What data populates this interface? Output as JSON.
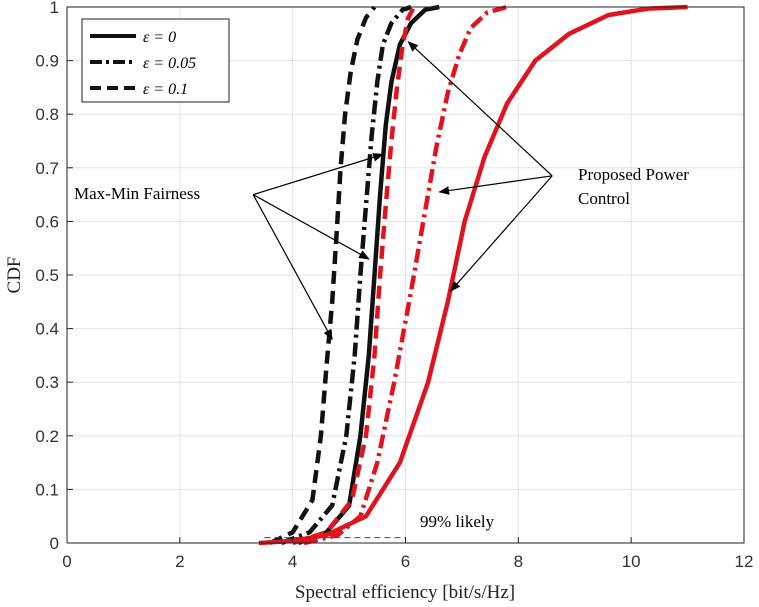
{
  "chart_data": {
    "type": "line",
    "title": "",
    "xlabel": "Spectral efficiency [bit/s/Hz]",
    "ylabel": "CDF",
    "xlim": [
      0,
      12
    ],
    "ylim": [
      0,
      1
    ],
    "xticks": [
      "0",
      "2",
      "4",
      "6",
      "8",
      "10",
      "12"
    ],
    "yticks": [
      "0",
      "0.1",
      "0.2",
      "0.3",
      "0.4",
      "0.5",
      "0.6",
      "0.7",
      "0.8",
      "0.9",
      "1"
    ],
    "grid": true,
    "legend_position": "top-left",
    "legend": [
      {
        "label": "ε = 0",
        "style": "solid"
      },
      {
        "label": "ε = 0.05",
        "style": "dashdot"
      },
      {
        "label": "ε = 0.1",
        "style": "dashed"
      }
    ],
    "series": [
      {
        "name": "Max-Min Fairness, ε = 0",
        "group": "max-min",
        "color": "#111111",
        "style": "solid",
        "x": [
          4.1,
          4.6,
          5.0,
          5.2,
          5.35,
          5.45,
          5.55,
          5.65,
          5.75,
          5.9,
          6.1,
          6.35,
          6.6
        ],
        "y": [
          0.0,
          0.02,
          0.07,
          0.2,
          0.35,
          0.5,
          0.65,
          0.78,
          0.86,
          0.93,
          0.97,
          0.995,
          1.0
        ]
      },
      {
        "name": "Max-Min Fairness, ε = 0.05",
        "group": "max-min",
        "color": "#111111",
        "style": "dashdot",
        "x": [
          3.8,
          4.3,
          4.7,
          4.95,
          5.1,
          5.2,
          5.3,
          5.4,
          5.5,
          5.6,
          5.75,
          5.95,
          6.1
        ],
        "y": [
          0.0,
          0.02,
          0.07,
          0.2,
          0.35,
          0.5,
          0.63,
          0.76,
          0.86,
          0.93,
          0.97,
          0.995,
          1.0
        ]
      },
      {
        "name": "Max-Min Fairness, ε = 0.1",
        "group": "max-min",
        "color": "#111111",
        "style": "dashed",
        "x": [
          3.6,
          4.0,
          4.35,
          4.5,
          4.6,
          4.7,
          4.78,
          4.85,
          4.93,
          5.03,
          5.15,
          5.3,
          5.45
        ],
        "y": [
          0.0,
          0.02,
          0.08,
          0.2,
          0.33,
          0.45,
          0.58,
          0.7,
          0.8,
          0.88,
          0.94,
          0.98,
          1.0
        ]
      },
      {
        "name": "Proposed Power Control, ε = 0",
        "group": "proposed",
        "color": "#e0141e",
        "style": "solid",
        "x": [
          3.4,
          4.0,
          4.6,
          5.3,
          5.9,
          6.4,
          6.75,
          7.05,
          7.4,
          7.8,
          8.3,
          8.9,
          9.6,
          10.3,
          11.0
        ],
        "y": [
          0.0,
          0.004,
          0.015,
          0.05,
          0.15,
          0.3,
          0.45,
          0.6,
          0.72,
          0.82,
          0.9,
          0.95,
          0.985,
          0.997,
          1.0
        ]
      },
      {
        "name": "Proposed Power Control, ε = 0.05",
        "group": "proposed",
        "color": "#e0141e",
        "style": "dashdot",
        "x": [
          4.2,
          4.8,
          5.2,
          5.5,
          5.8,
          6.1,
          6.35,
          6.55,
          6.75,
          6.95,
          7.15,
          7.45,
          7.8
        ],
        "y": [
          0.0,
          0.015,
          0.05,
          0.15,
          0.3,
          0.47,
          0.62,
          0.74,
          0.84,
          0.91,
          0.96,
          0.99,
          1.0
        ]
      },
      {
        "name": "Proposed Power Control, ε = 0.1",
        "group": "proposed",
        "color": "#e0141e",
        "style": "dashed",
        "x": [
          4.0,
          4.6,
          5.05,
          5.3,
          5.45,
          5.55,
          5.65,
          5.75,
          5.85,
          5.95,
          6.05,
          6.15
        ],
        "y": [
          0.0,
          0.02,
          0.08,
          0.2,
          0.35,
          0.5,
          0.63,
          0.75,
          0.85,
          0.93,
          0.98,
          1.0
        ]
      }
    ],
    "annotations": {
      "max_min_label": "Max-Min Fairness",
      "proposed_label_line1": "Proposed Power",
      "proposed_label_line2": "Control",
      "likely_label": "99% likely"
    },
    "arrows": [
      {
        "group": "max-min",
        "from": [
          3.3,
          0.65
        ],
        "to": [
          5.6,
          0.725
        ]
      },
      {
        "group": "max-min",
        "from": [
          3.3,
          0.65
        ],
        "to": [
          5.35,
          0.53
        ]
      },
      {
        "group": "max-min",
        "from": [
          3.3,
          0.65
        ],
        "to": [
          4.7,
          0.38
        ]
      },
      {
        "group": "proposed",
        "from": [
          8.6,
          0.685
        ],
        "to": [
          6.05,
          0.935
        ]
      },
      {
        "group": "proposed",
        "from": [
          8.6,
          0.685
        ],
        "to": [
          6.6,
          0.655
        ]
      },
      {
        "group": "proposed",
        "from": [
          8.6,
          0.685
        ],
        "to": [
          6.8,
          0.47
        ]
      }
    ],
    "likely_line": {
      "x": [
        3.5,
        6.0
      ],
      "y": [
        0.01,
        0.01
      ]
    }
  }
}
